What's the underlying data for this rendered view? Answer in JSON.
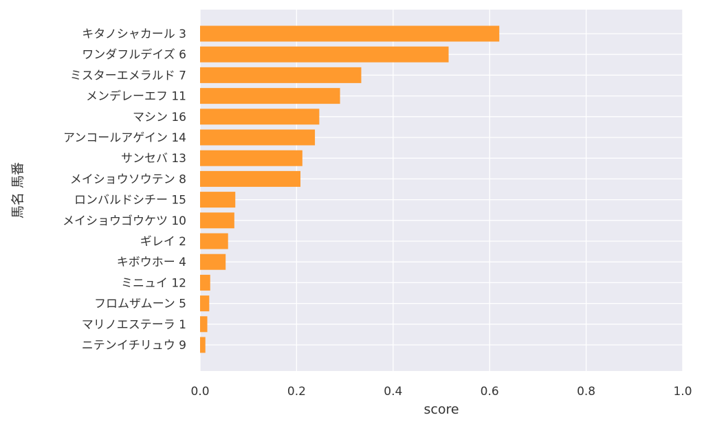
{
  "chart_data": {
    "type": "bar",
    "orientation": "horizontal",
    "categories": [
      "キタノシャカール 3",
      "ワンダフルデイズ 6",
      "ミスターエメラルド 7",
      "メンデレーエフ 11",
      "マシン 16",
      "アンコールアゲイン 14",
      "サンセバ 13",
      "メイショウソウテン 8",
      "ロンバルドシチー 15",
      "メイショウゴウケツ 10",
      "ギレイ 2",
      "キボウホー 4",
      "ミニュイ 12",
      "フロムザムーン 5",
      "マリノエステーラ 1",
      "ニテンイチリュウ 9"
    ],
    "values": [
      0.62,
      0.515,
      0.334,
      0.29,
      0.247,
      0.238,
      0.212,
      0.208,
      0.073,
      0.071,
      0.058,
      0.053,
      0.021,
      0.019,
      0.015,
      0.011
    ],
    "title": "",
    "xlabel": "score",
    "ylabel": "馬名 馬番",
    "xlim": [
      0,
      1.0
    ],
    "xticks": [
      "0.0",
      "0.2",
      "0.4",
      "0.6",
      "0.8",
      "1.0"
    ],
    "xtick_values": [
      0,
      0.2,
      0.4,
      0.6,
      0.8,
      1.0
    ],
    "grid": true,
    "legend": "none",
    "colors": {
      "bar": "#ff9a2e",
      "plot_background": "#eaeaf2",
      "grid": "#ffffff",
      "text": "#333333"
    }
  }
}
